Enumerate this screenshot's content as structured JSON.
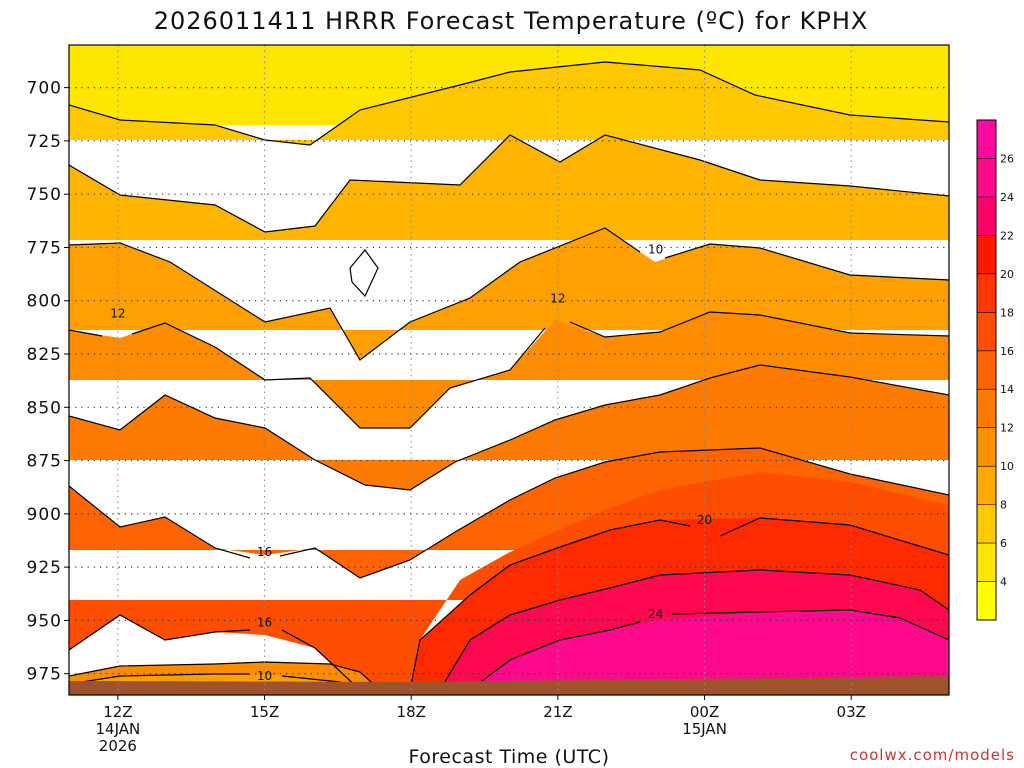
{
  "chart_data": {
    "type": "heatmap",
    "title": "2026011411 HRRR Forecast Temperature (ºC) for KPHX",
    "xlabel": "Forecast Time (UTC)",
    "ylabel": "",
    "y_axis": {
      "reversed": true,
      "range": [
        680,
        985
      ],
      "ticks": [
        700,
        725,
        750,
        775,
        800,
        825,
        850,
        875,
        900,
        925,
        950,
        975
      ]
    },
    "x_axis": {
      "range": [
        11,
        29
      ],
      "ticks": [
        {
          "x": 12,
          "lines": [
            "12Z",
            "14JAN",
            "2026"
          ]
        },
        {
          "x": 15,
          "lines": [
            "15Z"
          ]
        },
        {
          "x": 18,
          "lines": [
            "18Z"
          ]
        },
        {
          "x": 21,
          "lines": [
            "21Z"
          ]
        },
        {
          "x": 24,
          "lines": [
            "00Z",
            "15JAN"
          ]
        },
        {
          "x": 27,
          "lines": [
            "03Z"
          ]
        }
      ]
    },
    "grid": true,
    "colorbar": {
      "placement": "right",
      "labels": [
        4,
        6,
        8,
        10,
        12,
        14,
        16,
        18,
        20,
        22,
        24,
        26
      ],
      "levels": [
        2,
        4,
        6,
        8,
        10,
        12,
        14,
        16,
        18,
        20,
        22,
        24,
        26,
        28
      ],
      "colors": [
        "#ffff00",
        "#ffe600",
        "#ffc800",
        "#ffaa00",
        "#ff9200",
        "#ff7a00",
        "#ff6400",
        "#ff4e00",
        "#ff3600",
        "#ff1800",
        "#ff0066",
        "#ff0a8c",
        "#ff0aa0"
      ]
    },
    "contour_labels": [
      {
        "text": "10",
        "x": 23.0,
        "y": 776
      },
      {
        "text": "12",
        "x": 12.0,
        "y": 806
      },
      {
        "text": "12",
        "x": 21.0,
        "y": 799
      },
      {
        "text": "20",
        "x": 24.0,
        "y": 903
      },
      {
        "text": "16",
        "x": 15.0,
        "y": 918
      },
      {
        "text": "16",
        "x": 15.0,
        "y": 951
      },
      {
        "text": "24",
        "x": 23.0,
        "y": 947
      },
      {
        "text": "10",
        "x": 15.0,
        "y": 976
      }
    ],
    "credit": "coolwx.com/models",
    "colors": {
      "ground": "#a0522d",
      "contour": "#000000"
    }
  }
}
